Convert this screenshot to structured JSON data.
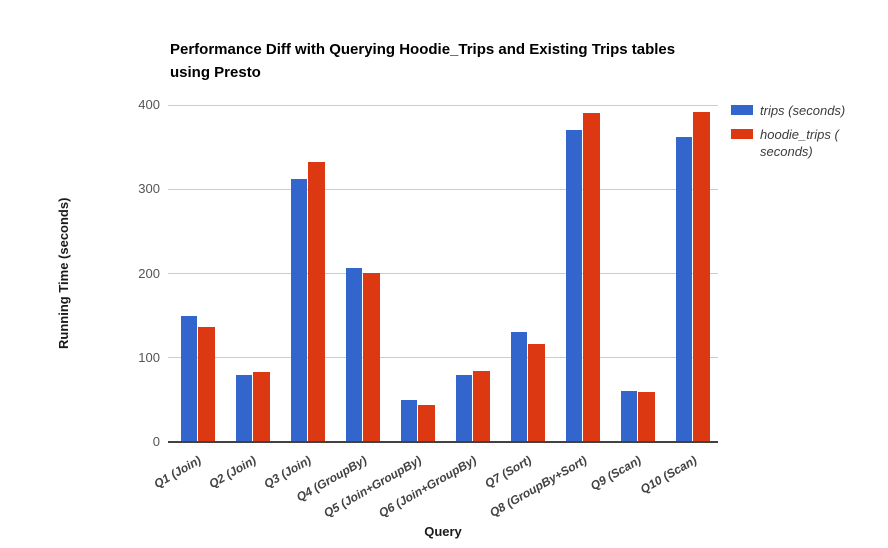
{
  "chart": {
    "title_line1": "Performance Diff with Querying Hoodie_Trips and Existing Trips tables",
    "title_line2": "using Presto"
  },
  "legend": {
    "position": "right",
    "items": [
      {
        "label": "trips (seconds)",
        "line1": "trips (seconds)",
        "line2": "",
        "color": "#3366cc"
      },
      {
        "label": "hoodie_trips (seconds)",
        "line1": "hoodie_trips (",
        "line2": "seconds)",
        "color": "#dc3912"
      }
    ]
  },
  "chart_data": {
    "type": "bar",
    "title": "Performance Diff with Querying Hoodie_Trips and Existing Trips tables using Presto",
    "xlabel": "Query",
    "ylabel": "Running Time (seconds)",
    "ylim": [
      0,
      400
    ],
    "yticks": [
      0,
      100,
      200,
      300,
      400
    ],
    "grid": true,
    "legend_position": "right",
    "categories": [
      "Q1 (Join)",
      "Q2 (Join)",
      "Q3 (Join)",
      "Q4 (GroupBy)",
      "Q5 (Join+GroupBy)",
      "Q6 (Join+GroupBy)",
      "Q7 (Sort)",
      "Q8 (GroupBy+Sort)",
      "Q9 (Scan)",
      "Q10 (Scan)"
    ],
    "series": [
      {
        "name": "trips (seconds)",
        "color": "#3366cc",
        "values": [
          150,
          80,
          312,
          207,
          50,
          80,
          130,
          370,
          60,
          362
        ]
      },
      {
        "name": "hoodie_trips (seconds)",
        "color": "#dc3912",
        "values": [
          137,
          83,
          332,
          201,
          44,
          84,
          116,
          390,
          59,
          392
        ]
      }
    ],
    "colors": {
      "gridline": "#cccccc",
      "baseline": "#424242",
      "background": "#ffffff"
    }
  }
}
